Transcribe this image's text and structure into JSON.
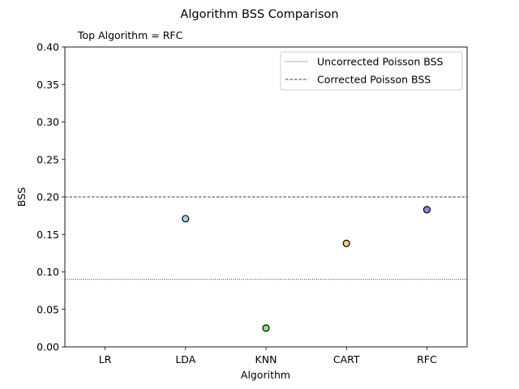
{
  "chart_data": {
    "type": "scatter",
    "title": "Algorithm BSS Comparison",
    "subtitle": "Top Algorithm = RFC",
    "xlabel": "Algorithm",
    "ylabel": "BSS",
    "categories": [
      "LR",
      "LDA",
      "KNN",
      "CART",
      "RFC"
    ],
    "points": [
      {
        "category": "LR",
        "value": null,
        "color": null
      },
      {
        "category": "LDA",
        "value": 0.171,
        "color": "#9fd8e8"
      },
      {
        "category": "KNN",
        "value": 0.025,
        "color": "#90e07c"
      },
      {
        "category": "CART",
        "value": 0.138,
        "color": "#ffc98f"
      },
      {
        "category": "RFC",
        "value": 0.183,
        "color": "#9b82d8"
      }
    ],
    "ylim": [
      0.0,
      0.4
    ],
    "yticks": [
      "0.00",
      "0.05",
      "0.10",
      "0.15",
      "0.20",
      "0.25",
      "0.30",
      "0.35",
      "0.40"
    ],
    "reference_lines": [
      {
        "name": "Uncorrected Poisson BSS",
        "value": 0.09,
        "style": "dotted"
      },
      {
        "name": "Corrected Poisson BSS",
        "value": 0.2,
        "style": "dashed"
      }
    ],
    "legend_position": "top-right",
    "grid": false
  }
}
